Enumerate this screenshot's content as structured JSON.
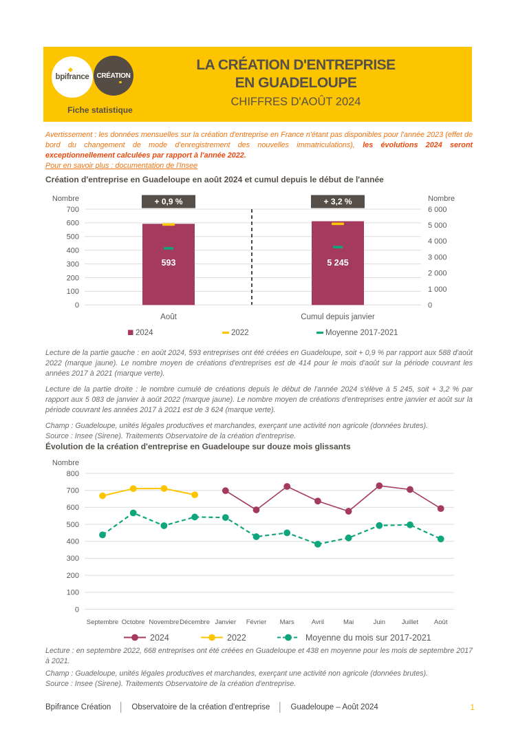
{
  "header": {
    "logo_primary": "bpifrance",
    "logo_secondary": "CRÉATION",
    "tagline": "Fiche statistique",
    "title_line1": "LA CRÉATION D'ENTREPRISE",
    "title_line2": "EN GUADELOUPE",
    "subtitle": "CHIFFRES D'AOÛT 2024",
    "bg_color": "#FCC500"
  },
  "notice": {
    "normal": "Avertissement : les données mensuelles sur la création d'entreprise en France n'étant pas disponibles pour l'année 2023 (effet de bord du changement de mode d'enregistrement des nouvelles immatriculations),  ",
    "bold": "les évolutions 2024 seront exceptionnellement calculées par rapport à l'année 2022.",
    "link": "Pour en savoir plus : documentation de l'Insee"
  },
  "section1_title": "Création d'entreprise en Guadeloupe en août 2024 et cumul depuis le début de l'année",
  "section2_title": "Évolution de la création d'entreprise en Guadeloupe sur douze mois glissants",
  "chart_data": [
    {
      "type": "bar",
      "title": "Création d'entreprise en Guadeloupe en août 2024 et cumul depuis le début de l'année",
      "ylabel_left": "Nombre",
      "ylabel_right": "Nombre",
      "ylim_left": [
        0,
        700
      ],
      "ylim_right": [
        0,
        6000
      ],
      "left_ticks": [
        "700",
        "600",
        "500",
        "400",
        "300",
        "200",
        "100",
        "0"
      ],
      "right_ticks": [
        "6 000",
        "5 000",
        "4 000",
        "3 000",
        "2 000",
        "1 000",
        "0"
      ],
      "categories": [
        "Août",
        "Cumul depuis janvier"
      ],
      "badges": [
        "+ 0,9 %",
        "+ 3,2 %"
      ],
      "series": [
        {
          "name": "2024",
          "values": [
            593,
            5245
          ],
          "labels": [
            "593",
            "5 245"
          ],
          "color": "#A43A5E",
          "marker": "bar"
        },
        {
          "name": "2022",
          "values": [
            588,
            5083
          ],
          "color": "#FCC500",
          "marker": "dash"
        },
        {
          "name": "Moyenne 2017-2021",
          "values": [
            414,
            3624
          ],
          "color": "#0FA57D",
          "marker": "dash"
        }
      ],
      "grid": true,
      "legend_position": "bottom"
    },
    {
      "type": "line",
      "title": "Évolution de la création d'entreprise en Guadeloupe sur douze mois glissants",
      "ylabel": "Nombre",
      "ylim": [
        0,
        800
      ],
      "yticks": [
        "800",
        "700",
        "600",
        "500",
        "400",
        "300",
        "200",
        "100",
        "0"
      ],
      "categories": [
        "Septembre",
        "Octobre",
        "Novembre",
        "Décembre",
        "Janvier",
        "Février",
        "Mars",
        "Avril",
        "Mai",
        "Juin",
        "Juillet",
        "Août"
      ],
      "series": [
        {
          "name": "2022",
          "color": "#FCC500",
          "dashed": false,
          "values": [
            668,
            710,
            711,
            674,
            null,
            null,
            null,
            null,
            null,
            null,
            null,
            null
          ]
        },
        {
          "name": "2024",
          "color": "#A43A5E",
          "dashed": false,
          "values": [
            null,
            null,
            null,
            null,
            698,
            585,
            723,
            637,
            577,
            727,
            705,
            593
          ]
        },
        {
          "name": "Moyenne du mois sur 2017-2021",
          "color": "#0FA57D",
          "dashed": true,
          "values": [
            438,
            567,
            492,
            543,
            540,
            427,
            450,
            383,
            420,
            493,
            497,
            414
          ]
        }
      ],
      "grid": true,
      "legend_position": "bottom"
    }
  ],
  "lecture1": {
    "p1": "Lecture de la partie gauche : en août 2024, 593 entreprises ont été créées en Guadeloupe, soit + 0,9 % par rapport aux 588 d'août 2022 (marque jaune). Le nombre moyen de créations d'entreprises est de 414 pour le mois d'août sur la période couvrant les années 2017 à 2021 (marque verte).",
    "p2": "Lecture de la partie droite : le nombre cumulé de créations depuis le début de l'année 2024 s'élève à 5 245, soit + 3,2 % par rapport aux 5 083 de janvier à août 2022 (marque jaune). Le nombre moyen de créations d'entreprises entre janvier et août sur la période couvrant les années 2017 à 2021 est de 3 624 (marque verte).",
    "champ": "Champ : Guadeloupe, unités légales productives et marchandes, exerçant une activité non agricole (données brutes).",
    "source": "Source : Insee (Sirene). Traitements Observatoire de la création d'entreprise."
  },
  "lecture2": {
    "p1": "Lecture : en septembre 2022, 668 entreprises ont été créées en Guadeloupe et 438 en moyenne pour les mois de septembre 2017 à 2021.",
    "champ": "Champ : Guadeloupe, unités légales productives et marchandes, exerçant une activité non agricole (données brutes).",
    "source": "Source : Insee (Sirene). Traitements Observatoire de la création d'entreprise."
  },
  "footer": {
    "items": [
      "Bpifrance Création",
      "Observatoire de la création d'entreprise",
      "Guadeloupe – Août 2024"
    ],
    "separator": "│",
    "page": "1"
  }
}
